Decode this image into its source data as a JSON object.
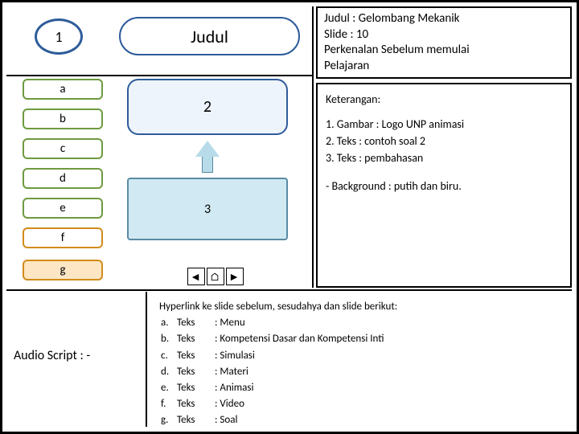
{
  "circle1": "1",
  "judul_label": "Judul",
  "menu": {
    "a": "a",
    "b": "b",
    "c": "c",
    "d": "d",
    "e": "e",
    "f": "f",
    "g": "g"
  },
  "box2": "2",
  "box3": "3",
  "nav": {
    "prev": "◄",
    "home": "⌂",
    "next": "►"
  },
  "info_top": {
    "l1": "Judul : Gelombang Mekanik",
    "l2": "Slide  : 10",
    "l3": "Perkenalan Sebelum memulai",
    "l4": "Pelajaran"
  },
  "info_mid": {
    "heading": "Keterangan:",
    "items": [
      "1.  Gambar  : Logo UNP animasi",
      "2.  Teks        : contoh soal  2",
      "3.  Teks        : pembahasan"
    ],
    "bg": "- Background : putih dan biru."
  },
  "audio": "Audio Script : -",
  "hyper": {
    "title": "Hyperlink ke slide sebelum, sesudahya dan slide berikut:",
    "rows": [
      [
        "a.",
        "Teks",
        ": Menu"
      ],
      [
        "b.",
        "Teks",
        ": Kompetensi Dasar dan Kompetensi Inti"
      ],
      [
        "c.",
        "Teks",
        ": Simulasi"
      ],
      [
        "d.",
        "Teks",
        ": Materi"
      ],
      [
        "e.",
        "Teks",
        ": Animasi"
      ],
      [
        "f.",
        "Teks",
        ": Video"
      ],
      [
        "g.",
        "Teks",
        ": Soal"
      ]
    ]
  },
  "colors": {
    "blue_border": "#2e5c9a",
    "green_border": "#6d9a3f",
    "orange_border": "#d18b1a",
    "orange_fill": "#fde6c4",
    "box2_fill": "#eef4fb",
    "box3_fill": "#d0e9f2",
    "box3_border": "#5a8aa3"
  }
}
